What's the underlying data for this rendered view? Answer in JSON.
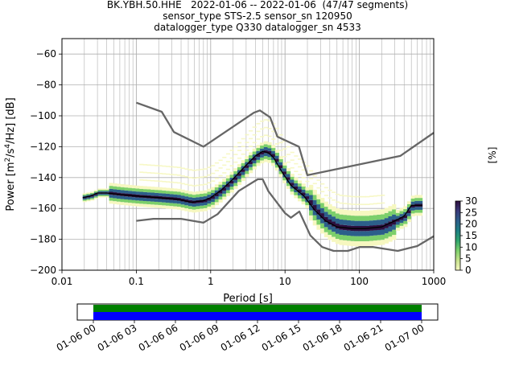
{
  "chart_data": [
    {
      "type": "heatmap",
      "title_lines": [
        "BK.YBH.50.HHE   2022-01-06 -- 2022-01-06  (47/47 segments)",
        "sensor_type STS-2.5 sensor_sn 120950",
        "datalogger_type Q330 datalogger_sn 4533"
      ],
      "xlabel": "Period [s]",
      "ylabel": "Power [m²/s⁴/Hz] [dB]",
      "x_scale": "log",
      "xlim": [
        0.01,
        1000
      ],
      "ylim": [
        -200,
        -50
      ],
      "x_ticks": [
        0.01,
        0.1,
        1,
        10,
        100,
        1000
      ],
      "x_tick_labels": [
        "0.01",
        "0.1",
        "1",
        "10",
        "100",
        "1000"
      ],
      "y_ticks": [
        -200,
        -180,
        -160,
        -140,
        -120,
        -100,
        -80,
        -60
      ],
      "y_tick_labels": [
        "−200",
        "−180",
        "−160",
        "−140",
        "−120",
        "−100",
        "−80",
        "−60"
      ],
      "grid": true,
      "colorbar": {
        "label": "[%]",
        "ticks": [
          0,
          5,
          10,
          15,
          20,
          25,
          30
        ],
        "range": [
          0,
          30
        ],
        "colors": [
          "#f6f7c0",
          "#c6e28c",
          "#7ccf6b",
          "#2fa46d",
          "#1e7f83",
          "#2c5f8a",
          "#3a3a7a",
          "#2d0f3e"
        ]
      },
      "series": [
        {
          "name": "",
          "role": "mean",
          "color": "#000000",
          "points": [
            [
              0.019,
              -153
            ],
            [
              0.024,
              -152
            ],
            [
              0.03,
              -150
            ],
            [
              0.04,
              -150
            ],
            [
              0.06,
              -151
            ],
            [
              0.1,
              -152
            ],
            [
              0.2,
              -153
            ],
            [
              0.35,
              -154
            ],
            [
              0.55,
              -156
            ],
            [
              0.8,
              -155
            ],
            [
              1.0,
              -153
            ],
            [
              1.4,
              -148
            ],
            [
              2.0,
              -141
            ],
            [
              3.0,
              -132
            ],
            [
              4.0,
              -126
            ],
            [
              5.0,
              -123
            ],
            [
              6.0,
              -124
            ],
            [
              7.0,
              -127
            ],
            [
              9.0,
              -136
            ],
            [
              12.0,
              -145
            ],
            [
              18.0,
              -152
            ],
            [
              25.0,
              -161
            ],
            [
              35.0,
              -168
            ],
            [
              50.0,
              -172
            ],
            [
              80.0,
              -173
            ],
            [
              120.0,
              -173
            ],
            [
              200.0,
              -172
            ],
            [
              300.0,
              -168
            ],
            [
              400.0,
              -165
            ],
            [
              500.0,
              -158
            ],
            [
              700.0,
              -158
            ]
          ]
        },
        {
          "name": "",
          "role": "nhnm",
          "color": "#666666",
          "points": [
            [
              0.1,
              -91.5
            ],
            [
              0.22,
              -97.4
            ],
            [
              0.32,
              -110.5
            ],
            [
              0.8,
              -120.0
            ],
            [
              3.8,
              -98.0
            ],
            [
              4.6,
              -96.5
            ],
            [
              6.3,
              -101.0
            ],
            [
              7.9,
              -113.5
            ],
            [
              15.4,
              -120.0
            ],
            [
              20.0,
              -138.5
            ],
            [
              354.8,
              -126.0
            ],
            [
              1000,
              -111.0
            ]
          ]
        },
        {
          "name": "",
          "role": "nlnm",
          "color": "#666666",
          "points": [
            [
              0.1,
              -168.0
            ],
            [
              0.17,
              -166.7
            ],
            [
              0.4,
              -166.7
            ],
            [
              0.8,
              -169.2
            ],
            [
              1.24,
              -163.7
            ],
            [
              2.4,
              -148.6
            ],
            [
              4.3,
              -141.1
            ],
            [
              5.0,
              -141.1
            ],
            [
              6.0,
              -149.0
            ],
            [
              10.0,
              -163.0
            ],
            [
              12.0,
              -166.0
            ],
            [
              15.6,
              -162.0
            ],
            [
              21.9,
              -177.5
            ],
            [
              31.6,
              -185.0
            ],
            [
              45.0,
              -187.5
            ],
            [
              70.0,
              -187.5
            ],
            [
              101.0,
              -185.0
            ],
            [
              154.0,
              -185.0
            ],
            [
              328.0,
              -187.5
            ],
            [
              600.0,
              -184.4
            ],
            [
              1000,
              -178.0
            ]
          ]
        }
      ]
    },
    {
      "type": "timeline",
      "x_tick_labels": [
        "01-06 00",
        "01-06 03",
        "01-06 06",
        "01-06 09",
        "01-06 12",
        "01-06 15",
        "01-06 18",
        "01-06 21",
        "01-07 00"
      ],
      "bands": [
        {
          "name": "",
          "color": "#008000",
          "start_hour": 0,
          "end_hour": 24
        },
        {
          "name": "",
          "color": "#0000ff",
          "start_hour": 0,
          "end_hour": 24
        }
      ]
    }
  ]
}
